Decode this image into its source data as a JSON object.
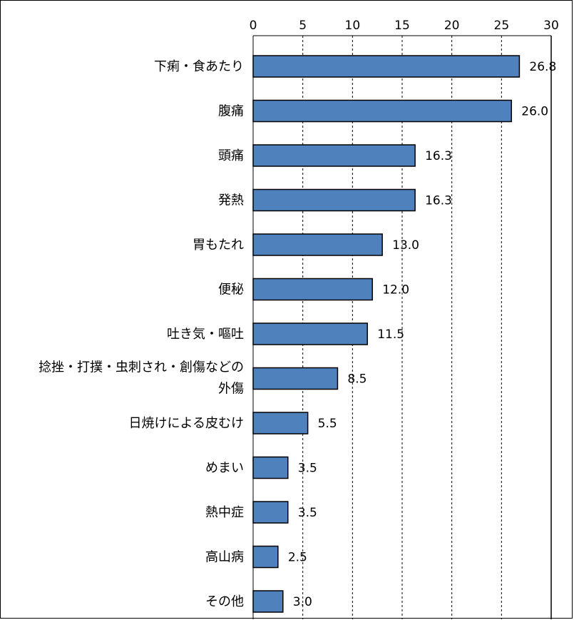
{
  "chart_data": {
    "type": "bar",
    "orientation": "horizontal",
    "categories": [
      "下痢・食あたり",
      "腹痛",
      "頭痛",
      "発熱",
      "胃もたれ",
      "便秘",
      "吐き気・嘔吐",
      "捻挫・打撲・虫刺され・創傷などの\n外傷",
      "日焼けによる皮むけ",
      "めまい",
      "熱中症",
      "高山病",
      "その他"
    ],
    "values": [
      26.8,
      26.0,
      16.3,
      16.3,
      13.0,
      12.0,
      11.5,
      8.5,
      5.5,
      3.5,
      3.5,
      2.5,
      3.0
    ],
    "value_labels": [
      "26.8",
      "26.0",
      "16.3",
      "16.3",
      "13.0",
      "12.0",
      "11.5",
      "8.5",
      "5.5",
      "3.5",
      "3.5",
      "2.5",
      "3.0"
    ],
    "x_ticks": [
      "0",
      "5",
      "10",
      "15",
      "20",
      "25",
      "30"
    ],
    "xlim": [
      0,
      30
    ],
    "grid": "vertical dashed",
    "x_axis_position": "top",
    "bar_color": "#4F81BD",
    "title": "",
    "xlabel": "",
    "ylabel": ""
  }
}
